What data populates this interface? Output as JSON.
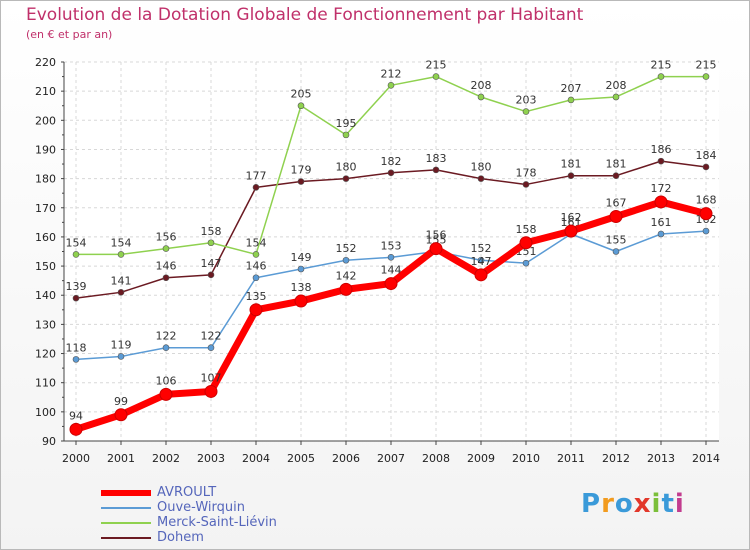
{
  "header": {
    "title": "Evolution de la Dotation Globale de Fonctionnement par Habitant",
    "subtitle": "(en € et par an)"
  },
  "logo": {
    "text": "Proxiti",
    "colors": [
      "#3a9ad9",
      "#f29b1e",
      "#3a9ad9",
      "#e2372a",
      "#7bbf3a",
      "#3a9ad9",
      "#c23c8f"
    ]
  },
  "chart_data": {
    "type": "line",
    "x": [
      2000,
      2001,
      2002,
      2003,
      2004,
      2005,
      2006,
      2007,
      2008,
      2009,
      2010,
      2011,
      2012,
      2013,
      2014
    ],
    "ylim": [
      90,
      220
    ],
    "yticks": [
      90,
      100,
      110,
      120,
      130,
      140,
      150,
      160,
      170,
      180,
      190,
      200,
      210,
      220
    ],
    "grid": true,
    "legend_position": "bottom-left",
    "series": [
      {
        "name": "Dohem",
        "color": "#6b1a22",
        "values": [
          139,
          141,
          146,
          147,
          177,
          179,
          180,
          182,
          183,
          180,
          178,
          181,
          181,
          186,
          184
        ]
      },
      {
        "name": "Merck-Saint-Liévin",
        "color": "#8fd14f",
        "values": [
          154,
          154,
          156,
          158,
          154,
          205,
          195,
          212,
          215,
          208,
          203,
          207,
          208,
          215,
          215
        ]
      },
      {
        "name": "Ouve-Wirquin",
        "color": "#5b9bd5",
        "values": [
          118,
          119,
          122,
          122,
          146,
          149,
          152,
          153,
          155,
          152,
          151,
          161,
          155,
          161,
          162
        ]
      },
      {
        "name": "AVROULT",
        "color": "#ff0000",
        "values": [
          94,
          99,
          106,
          107,
          135,
          138,
          142,
          144,
          156,
          147,
          158,
          162,
          167,
          172,
          168
        ]
      }
    ],
    "legend_order": [
      "AVROULT",
      "Ouve-Wirquin",
      "Merck-Saint-Liévin",
      "Dohem"
    ]
  }
}
